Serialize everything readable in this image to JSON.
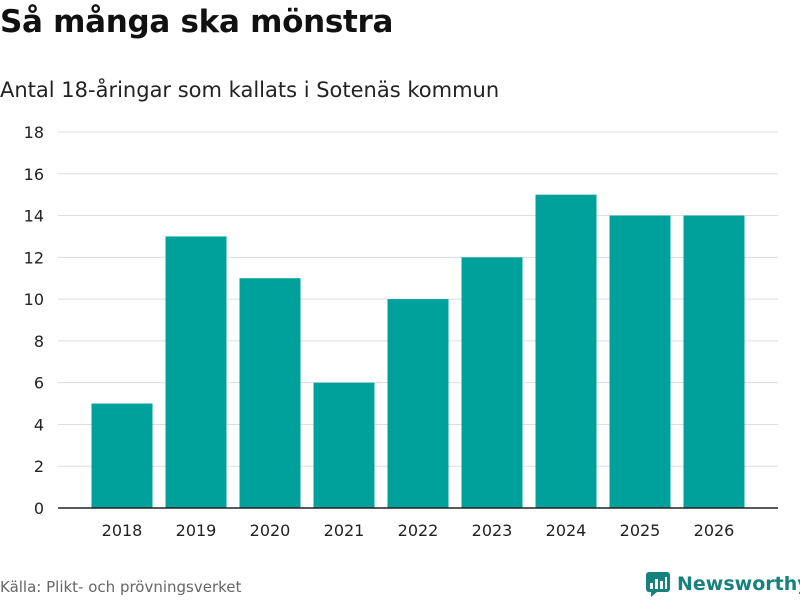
{
  "title": "Så många ska mönstra",
  "subtitle": "Antal 18-åringar som kallats i Sotenäs kommun",
  "source": "Källa: Plikt- och prövningsverket",
  "brand": {
    "name": "Newsworthy",
    "icon": "newsworthy-logo-icon",
    "color": "#17817d"
  },
  "colors": {
    "bar": "#00a19a",
    "grid": "#dddddd",
    "axis": "#222222"
  },
  "chart_data": {
    "type": "bar",
    "title": "Så många ska mönstra",
    "subtitle": "Antal 18-åringar som kallats i Sotenäs kommun",
    "categories": [
      "2018",
      "2019",
      "2020",
      "2021",
      "2022",
      "2023",
      "2024",
      "2025",
      "2026"
    ],
    "values": [
      5,
      13,
      11,
      6,
      10,
      12,
      15,
      14,
      14
    ],
    "xlabel": "",
    "ylabel": "",
    "ylim": [
      0,
      18
    ],
    "yticks": [
      0,
      2,
      4,
      6,
      8,
      10,
      12,
      14,
      16,
      18
    ],
    "grid": true,
    "legend": "none"
  }
}
